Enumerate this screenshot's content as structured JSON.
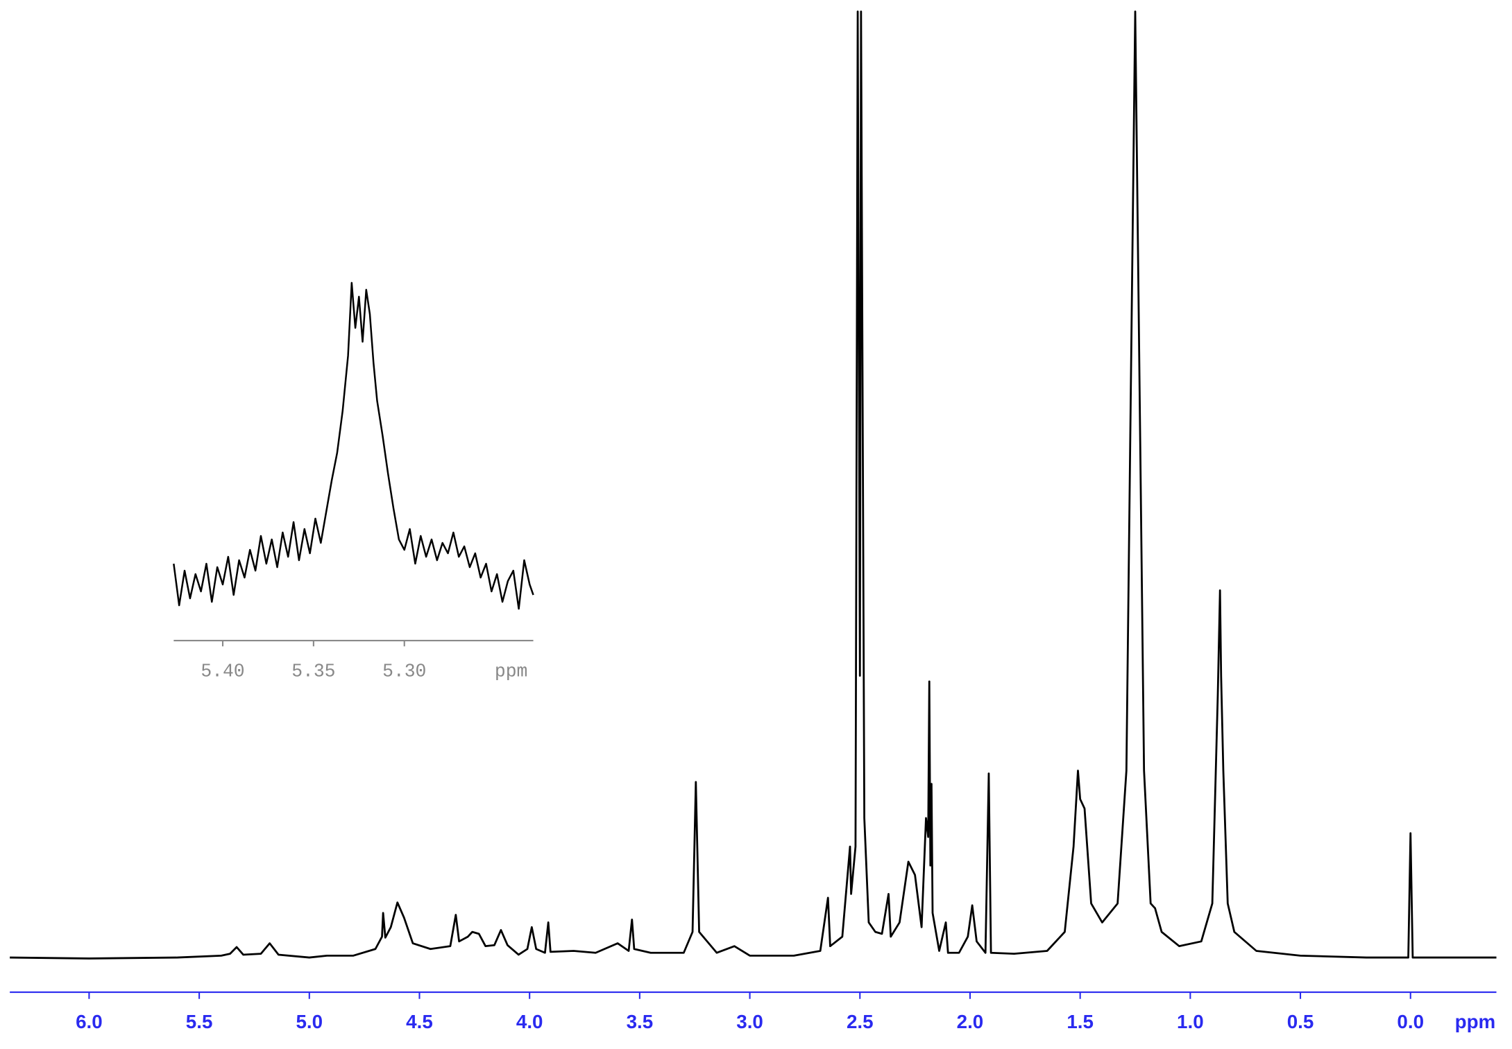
{
  "chart_data": [
    {
      "type": "line",
      "role": "main",
      "color": "#000000",
      "axis_color": "#2a2af0",
      "x_label": "ppm",
      "xlim": [
        6.36,
        -0.39
      ],
      "ylim": [
        0,
        100
      ],
      "xticks": [
        {
          "value": 6,
          "label": "6.0"
        },
        5.5,
        {
          "value": 5,
          "label": "5.0"
        },
        4.5,
        {
          "value": 4,
          "label": "4.0"
        },
        3.5,
        {
          "value": 3,
          "label": "3.0"
        },
        2.5,
        {
          "value": 2,
          "label": "2.0"
        },
        1.5,
        {
          "value": 1,
          "label": "1.0"
        },
        0.5,
        {
          "value": 0,
          "label": "0.0"
        }
      ],
      "x": [
        6.36,
        6.0,
        5.6,
        5.4,
        5.36,
        5.33,
        5.3,
        5.22,
        5.18,
        5.14,
        5.0,
        4.92,
        4.8,
        4.7,
        4.67,
        4.665,
        4.655,
        4.63,
        4.6,
        4.57,
        4.53,
        4.45,
        4.36,
        4.335,
        4.32,
        4.28,
        4.26,
        4.23,
        4.2,
        4.16,
        4.13,
        4.1,
        4.05,
        4.01,
        3.99,
        3.97,
        3.93,
        3.915,
        3.905,
        3.8,
        3.7,
        3.6,
        3.55,
        3.535,
        3.525,
        3.45,
        3.3,
        3.26,
        3.245,
        3.23,
        3.15,
        3.07,
        3.0,
        2.8,
        2.68,
        2.645,
        2.635,
        2.58,
        2.545,
        2.54,
        2.52,
        2.51,
        2.5,
        2.495,
        2.48,
        2.46,
        2.43,
        2.4,
        2.37,
        2.36,
        2.32,
        2.28,
        2.25,
        2.22,
        2.2,
        2.19,
        2.185,
        2.18,
        2.175,
        2.17,
        2.14,
        2.11,
        2.1,
        2.05,
        2.01,
        1.99,
        1.97,
        1.93,
        1.915,
        1.905,
        1.8,
        1.65,
        1.57,
        1.53,
        1.51,
        1.5,
        1.48,
        1.45,
        1.4,
        1.33,
        1.29,
        1.27,
        1.25,
        1.23,
        1.21,
        1.18,
        1.16,
        1.13,
        1.05,
        0.95,
        0.9,
        0.875,
        0.865,
        0.86,
        0.85,
        0.83,
        0.8,
        0.7,
        0.5,
        0.2,
        0.01,
        0.0,
        -0.01,
        -0.2,
        -0.39
      ],
      "values": [
        0.3,
        0.2,
        0.3,
        0.5,
        0.7,
        1.4,
        0.6,
        0.7,
        1.8,
        0.6,
        0.3,
        0.5,
        0.5,
        1.2,
        2.5,
        5.0,
        2.4,
        3.5,
        6.1,
        4.5,
        1.8,
        1.2,
        1.5,
        4.8,
        2.0,
        2.5,
        3.0,
        2.8,
        1.5,
        1.6,
        3.2,
        1.6,
        0.6,
        1.2,
        3.5,
        1.2,
        0.8,
        4.0,
        0.9,
        1.0,
        0.8,
        1.8,
        1.0,
        4.3,
        1.2,
        0.8,
        0.8,
        3.0,
        18.8,
        3.0,
        0.8,
        1.5,
        0.5,
        0.5,
        1.0,
        6.6,
        1.5,
        2.5,
        12.0,
        7.0,
        12.0,
        100,
        30,
        100,
        15,
        4,
        3,
        2.8,
        7.0,
        2.5,
        4.0,
        10.4,
        9.0,
        3.5,
        15.0,
        13,
        29.4,
        10,
        18.6,
        5,
        1.0,
        4.0,
        0.8,
        0.8,
        2.5,
        5.8,
        2.0,
        0.8,
        19.7,
        0.8,
        0.7,
        1.0,
        3.0,
        12,
        20,
        17,
        16,
        6,
        4.0,
        6,
        20,
        60,
        100,
        60,
        20,
        6,
        5.5,
        3,
        1.5,
        2.0,
        6.0,
        28,
        39,
        30,
        20,
        6,
        3,
        1.0,
        0.5,
        0.3,
        0.3,
        13.4,
        0.3,
        0.3,
        0.3
      ]
    },
    {
      "type": "line",
      "role": "inset",
      "color": "#000000",
      "axis_color": "#888888",
      "x_label": "ppm",
      "xlim": [
        5.427,
        5.229
      ],
      "ylim": [
        0,
        100
      ],
      "xticks": [
        {
          "value": 5.4,
          "label": "5.40"
        },
        5.35,
        {
          "value": 5.3,
          "label": "5.30"
        }
      ],
      "x": [
        5.427,
        5.424,
        5.421,
        5.418,
        5.415,
        5.412,
        5.409,
        5.406,
        5.403,
        5.4,
        5.397,
        5.394,
        5.391,
        5.388,
        5.385,
        5.382,
        5.379,
        5.376,
        5.373,
        5.37,
        5.367,
        5.364,
        5.361,
        5.358,
        5.355,
        5.352,
        5.349,
        5.346,
        5.343,
        5.34,
        5.337,
        5.334,
        5.331,
        5.329,
        5.327,
        5.325,
        5.323,
        5.321,
        5.319,
        5.317,
        5.315,
        5.312,
        5.309,
        5.306,
        5.303,
        5.3,
        5.297,
        5.294,
        5.291,
        5.288,
        5.285,
        5.282,
        5.279,
        5.276,
        5.273,
        5.27,
        5.267,
        5.264,
        5.261,
        5.258,
        5.255,
        5.252,
        5.249,
        5.246,
        5.243,
        5.24,
        5.237,
        5.234,
        5.231,
        5.229
      ],
      "values": [
        18,
        6,
        16,
        8,
        15,
        10,
        18,
        7,
        17,
        12,
        20,
        9,
        19,
        14,
        22,
        16,
        26,
        18,
        25,
        17,
        27,
        20,
        30,
        19,
        28,
        21,
        31,
        24,
        33,
        42,
        50,
        62,
        78,
        99,
        86,
        95,
        82,
        97,
        90,
        76,
        65,
        55,
        44,
        34,
        25,
        22,
        28,
        18,
        26,
        20,
        25,
        19,
        24,
        21,
        27,
        20,
        23,
        17,
        21,
        14,
        18,
        10,
        15,
        7,
        13,
        16,
        5,
        19,
        12,
        9
      ]
    }
  ]
}
